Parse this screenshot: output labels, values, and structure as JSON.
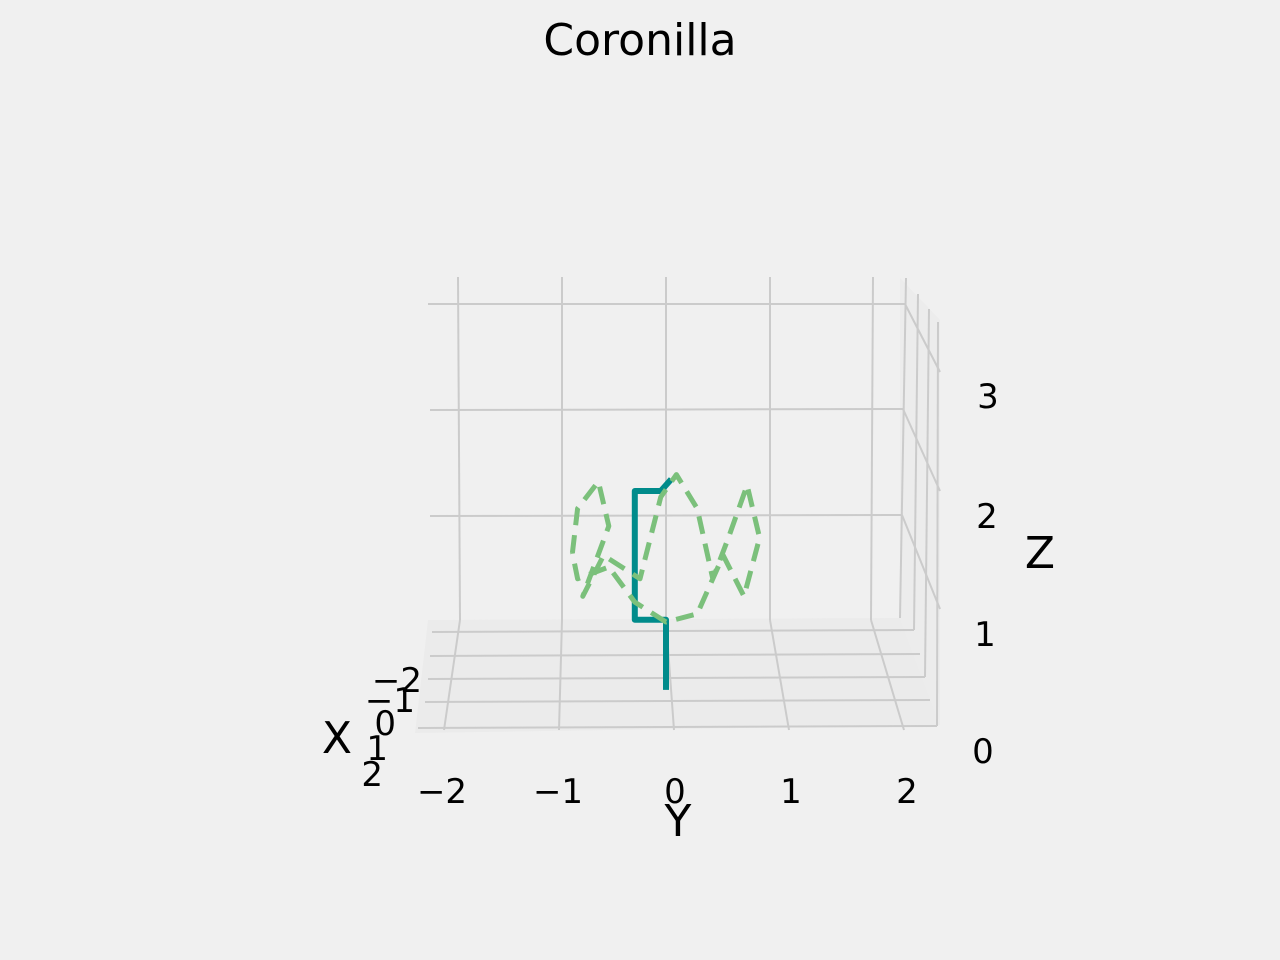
{
  "chart_data": {
    "type": "line",
    "projection": "3d",
    "title": "Coronilla",
    "xlabel": "X",
    "ylabel": "Y",
    "zlabel": "Z",
    "x_ticks": [
      "−2",
      "−1",
      "0",
      "1",
      "2"
    ],
    "y_ticks": [
      "−2",
      "−1",
      "0",
      "1",
      "2"
    ],
    "z_ticks": [
      "0",
      "1",
      "2",
      "3"
    ],
    "xlim": [
      -2,
      2
    ],
    "ylim": [
      -2,
      2
    ],
    "zlim": [
      0,
      3.5
    ],
    "grid": true,
    "series": [
      {
        "style": "solid",
        "color": "#008b8b",
        "points": [
          {
            "x": 0,
            "y": 0,
            "z": 0.3
          },
          {
            "x": 0,
            "y": 0,
            "z": 0.9
          },
          {
            "x": 0,
            "y": -0.3,
            "z": 0.9
          },
          {
            "x": 0,
            "y": -0.3,
            "z": 2.0
          },
          {
            "x": 0,
            "y": -0.05,
            "z": 2.0
          },
          {
            "x": 0,
            "y": 0.05,
            "z": 2.1
          }
        ]
      },
      {
        "style": "dashed",
        "color": "#7bc07b",
        "description_param": "rose curve",
        "points": [
          {
            "y": -0.9,
            "z": 1.47
          },
          {
            "y": -0.85,
            "z": 1.85
          },
          {
            "y": -0.65,
            "z": 2.08
          },
          {
            "y": -0.55,
            "z": 1.7
          },
          {
            "y": -0.8,
            "z": 1.1
          },
          {
            "y": -0.6,
            "z": 1.45
          },
          {
            "y": -0.25,
            "z": 1.25
          },
          {
            "y": -0.05,
            "z": 1.95
          },
          {
            "y": 0.1,
            "z": 2.14
          },
          {
            "y": 0.3,
            "z": 1.85
          },
          {
            "y": 0.45,
            "z": 1.25
          },
          {
            "y": 0.6,
            "z": 1.6
          },
          {
            "y": 0.78,
            "z": 2.05
          },
          {
            "y": 0.9,
            "z": 1.6
          },
          {
            "y": 0.75,
            "z": 1.1
          },
          {
            "y": 0.55,
            "z": 1.45
          },
          {
            "y": 0.3,
            "z": 0.95
          },
          {
            "y": 0.0,
            "z": 0.88
          },
          {
            "y": -0.3,
            "z": 1.05
          },
          {
            "y": -0.55,
            "z": 1.35
          },
          {
            "y": -0.85,
            "z": 1.25
          },
          {
            "y": -0.9,
            "z": 1.47
          }
        ]
      }
    ]
  }
}
